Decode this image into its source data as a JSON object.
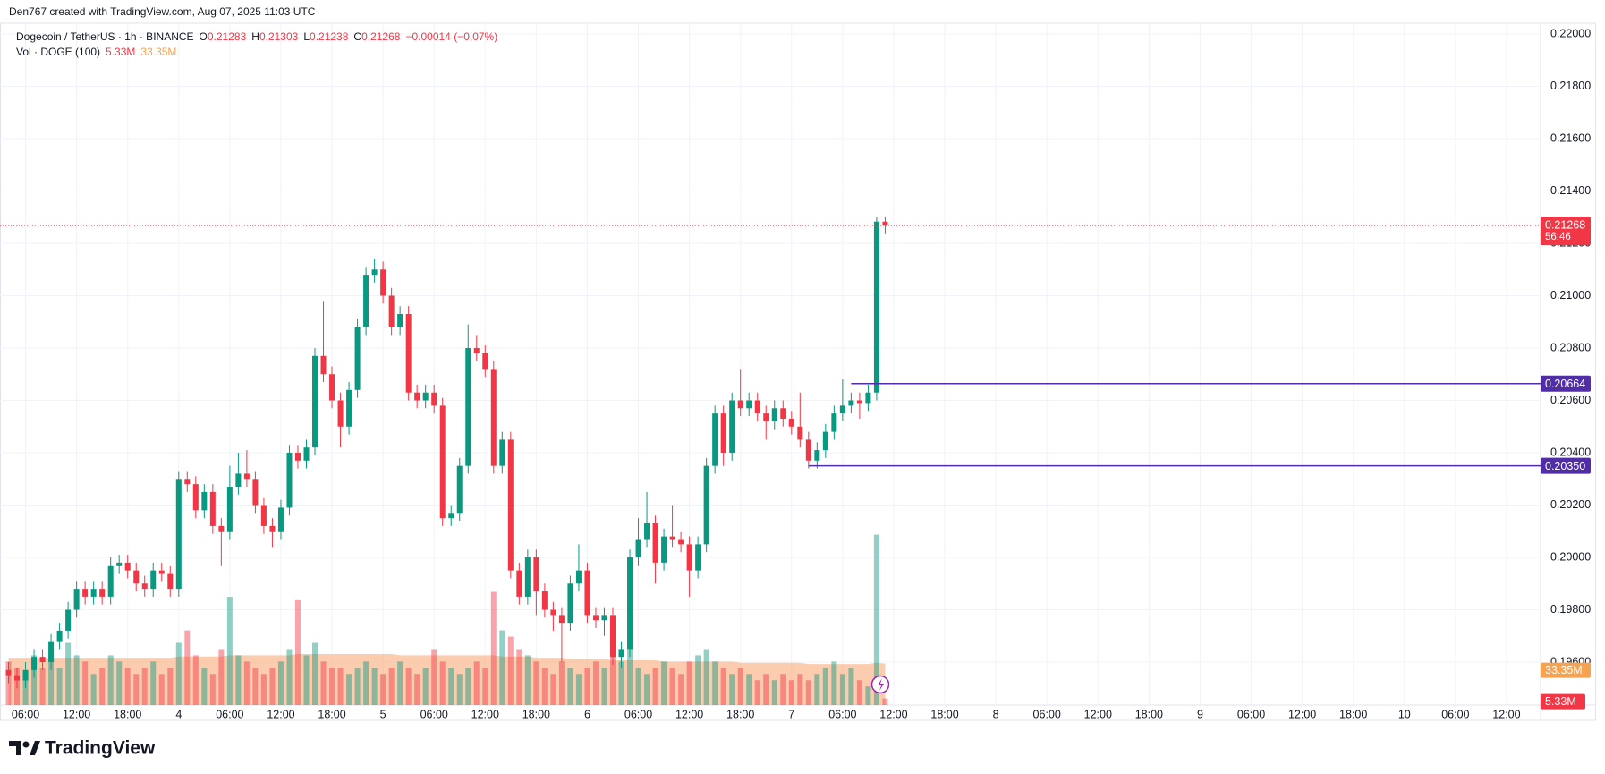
{
  "chart_data": {
    "type": "candlestick",
    "header": "Den767 created with TradingView.com, Aug 07, 2025 11:03 UTC",
    "legend": {
      "symbol": "Dogecoin / TetherUS · 1h · BINANCE",
      "o": "O",
      "h": "H",
      "l": "L",
      "c": "C",
      "change": "−0.00014 (−0.07%)",
      "vol": "Vol · DOGE (100)"
    },
    "brand": "TradingView",
    "countdown": "56:46",
    "up_color": "#089981",
    "down_color": "#f23645",
    "ma_color": "#f9a36d",
    "level_color": "#512da8",
    "x": [
      "2025-08-03 04:00",
      "2025-08-03 05:00",
      "2025-08-03 06:00",
      "2025-08-03 07:00",
      "2025-08-03 08:00",
      "2025-08-03 09:00",
      "2025-08-03 10:00",
      "2025-08-03 11:00",
      "2025-08-03 12:00",
      "2025-08-03 13:00",
      "2025-08-03 14:00",
      "2025-08-03 15:00",
      "2025-08-03 16:00",
      "2025-08-03 17:00",
      "2025-08-03 18:00",
      "2025-08-03 19:00",
      "2025-08-03 20:00",
      "2025-08-03 21:00",
      "2025-08-03 22:00",
      "2025-08-03 23:00",
      "2025-08-04 00:00",
      "2025-08-04 01:00",
      "2025-08-04 02:00",
      "2025-08-04 03:00",
      "2025-08-04 04:00",
      "2025-08-04 05:00",
      "2025-08-04 06:00",
      "2025-08-04 07:00",
      "2025-08-04 08:00",
      "2025-08-04 09:00",
      "2025-08-04 10:00",
      "2025-08-04 11:00",
      "2025-08-04 12:00",
      "2025-08-04 13:00",
      "2025-08-04 14:00",
      "2025-08-04 15:00",
      "2025-08-04 16:00",
      "2025-08-04 17:00",
      "2025-08-04 18:00",
      "2025-08-04 19:00",
      "2025-08-04 20:00",
      "2025-08-04 21:00",
      "2025-08-04 22:00",
      "2025-08-04 23:00",
      "2025-08-05 00:00",
      "2025-08-05 01:00",
      "2025-08-05 02:00",
      "2025-08-05 03:00",
      "2025-08-05 04:00",
      "2025-08-05 05:00",
      "2025-08-05 06:00",
      "2025-08-05 07:00",
      "2025-08-05 08:00",
      "2025-08-05 09:00",
      "2025-08-05 10:00",
      "2025-08-05 11:00",
      "2025-08-05 12:00",
      "2025-08-05 13:00",
      "2025-08-05 14:00",
      "2025-08-05 15:00",
      "2025-08-05 16:00",
      "2025-08-05 17:00",
      "2025-08-05 18:00",
      "2025-08-05 19:00",
      "2025-08-05 20:00",
      "2025-08-05 21:00",
      "2025-08-05 22:00",
      "2025-08-05 23:00",
      "2025-08-06 00:00",
      "2025-08-06 01:00",
      "2025-08-06 02:00",
      "2025-08-06 03:00",
      "2025-08-06 04:00",
      "2025-08-06 05:00",
      "2025-08-06 06:00",
      "2025-08-06 07:00",
      "2025-08-06 08:00",
      "2025-08-06 09:00",
      "2025-08-06 10:00",
      "2025-08-06 11:00",
      "2025-08-06 12:00",
      "2025-08-06 13:00",
      "2025-08-06 14:00",
      "2025-08-06 15:00",
      "2025-08-06 16:00",
      "2025-08-06 17:00",
      "2025-08-06 18:00",
      "2025-08-06 19:00",
      "2025-08-06 20:00",
      "2025-08-06 21:00",
      "2025-08-06 22:00",
      "2025-08-06 23:00",
      "2025-08-07 00:00",
      "2025-08-07 01:00",
      "2025-08-07 02:00",
      "2025-08-07 03:00",
      "2025-08-07 04:00",
      "2025-08-07 05:00",
      "2025-08-07 06:00",
      "2025-08-07 07:00",
      "2025-08-07 08:00",
      "2025-08-07 09:00",
      "2025-08-07 10:00",
      "2025-08-07 11:00"
    ],
    "open": [
      0.1957,
      0.1955,
      0.1953,
      0.1957,
      0.1962,
      0.196,
      0.1968,
      0.1972,
      0.198,
      0.1988,
      0.1985,
      0.1988,
      0.1985,
      0.1997,
      0.1998,
      0.1995,
      0.199,
      0.1988,
      0.1995,
      0.1994,
      0.1988,
      0.203,
      0.2028,
      0.2018,
      0.2025,
      0.2012,
      0.201,
      0.2027,
      0.2032,
      0.203,
      0.202,
      0.2012,
      0.201,
      0.2019,
      0.204,
      0.2037,
      0.2042,
      0.2077,
      0.207,
      0.206,
      0.205,
      0.2064,
      0.2088,
      0.2108,
      0.211,
      0.21,
      0.2088,
      0.2093,
      0.2063,
      0.206,
      0.2063,
      0.2058,
      0.2015,
      0.2017,
      0.2035,
      0.208,
      0.2078,
      0.2072,
      0.2035,
      0.2045,
      0.1995,
      0.1985,
      0.2,
      0.1987,
      0.198,
      0.1978,
      0.1975,
      0.199,
      0.1995,
      0.1978,
      0.1976,
      0.1978,
      0.1962,
      0.1965,
      0.2,
      0.2007,
      0.2013,
      0.1998,
      0.2008,
      0.2007,
      0.2005,
      0.1995,
      0.2005,
      0.2035,
      0.2055,
      0.204,
      0.206,
      0.2057,
      0.206,
      0.2055,
      0.2052,
      0.2057,
      0.2053,
      0.205,
      0.2045,
      0.2037,
      0.2041,
      0.2048,
      0.2055,
      0.2058,
      0.206,
      0.2059,
      0.2063,
      0.21283
    ],
    "high": [
      0.196,
      0.1958,
      0.196,
      0.1965,
      0.1965,
      0.1971,
      0.1975,
      0.1983,
      0.1991,
      0.1991,
      0.1991,
      0.1991,
      0.2,
      0.2001,
      0.2001,
      0.1998,
      0.1993,
      0.1998,
      0.1998,
      0.1997,
      0.2033,
      0.2033,
      0.2031,
      0.2028,
      0.2028,
      0.2015,
      0.2035,
      0.204,
      0.2041,
      0.2033,
      0.2023,
      0.2015,
      0.2022,
      0.2043,
      0.2043,
      0.2045,
      0.208,
      0.2098,
      0.2073,
      0.2063,
      0.2067,
      0.2091,
      0.2111,
      0.2114,
      0.2113,
      0.2103,
      0.2096,
      0.2096,
      0.2066,
      0.2066,
      0.2066,
      0.2061,
      0.202,
      0.2038,
      0.2089,
      0.2085,
      0.2081,
      0.2075,
      0.2048,
      0.2048,
      0.1998,
      0.2003,
      0.2003,
      0.199,
      0.1983,
      0.1981,
      0.1993,
      0.2005,
      0.1998,
      0.1981,
      0.1981,
      0.1981,
      0.1968,
      0.2003,
      0.2015,
      0.2025,
      0.2016,
      0.2011,
      0.202,
      0.201,
      0.2008,
      0.2008,
      0.2038,
      0.2058,
      0.2058,
      0.2063,
      0.2072,
      0.2063,
      0.2063,
      0.2058,
      0.206,
      0.206,
      0.2056,
      0.2063,
      0.2048,
      0.2044,
      0.2051,
      0.2058,
      0.2068,
      0.2063,
      0.2063,
      0.2066,
      0.213,
      0.21303
    ],
    "low": [
      0.1952,
      0.195,
      0.195,
      0.1954,
      0.1957,
      0.1957,
      0.1965,
      0.1969,
      0.1977,
      0.1982,
      0.1982,
      0.1982,
      0.1982,
      0.1994,
      0.1992,
      0.1987,
      0.1985,
      0.1985,
      0.1991,
      0.1985,
      0.1985,
      0.2025,
      0.2015,
      0.2015,
      0.2009,
      0.1997,
      0.2007,
      0.2024,
      0.2027,
      0.2017,
      0.2009,
      0.2004,
      0.2007,
      0.2016,
      0.2034,
      0.2034,
      0.2039,
      0.2067,
      0.2057,
      0.2042,
      0.2047,
      0.2061,
      0.2085,
      0.2105,
      0.2097,
      0.2085,
      0.2085,
      0.206,
      0.2057,
      0.2057,
      0.2055,
      0.2012,
      0.2012,
      0.2014,
      0.2032,
      0.2075,
      0.2069,
      0.2032,
      0.2032,
      0.1992,
      0.1982,
      0.1982,
      0.1978,
      0.1977,
      0.1972,
      0.196,
      0.1972,
      0.1987,
      0.1975,
      0.1973,
      0.197,
      0.1959,
      0.1958,
      0.1962,
      0.1997,
      0.2004,
      0.199,
      0.1995,
      0.2004,
      0.2002,
      0.1985,
      0.1992,
      0.2002,
      0.2032,
      0.2035,
      0.2037,
      0.2054,
      0.2054,
      0.2052,
      0.2045,
      0.2049,
      0.205,
      0.2047,
      0.2042,
      0.2034,
      0.2034,
      0.2038,
      0.2045,
      0.2052,
      0.2055,
      0.2053,
      0.2056,
      0.206,
      0.21238
    ],
    "close": [
      0.1955,
      0.1953,
      0.1957,
      0.1962,
      0.196,
      0.1968,
      0.1972,
      0.198,
      0.1988,
      0.1985,
      0.1988,
      0.1985,
      0.1997,
      0.1998,
      0.1995,
      0.199,
      0.1988,
      0.1995,
      0.1994,
      0.1988,
      0.203,
      0.2028,
      0.2018,
      0.2025,
      0.2012,
      0.201,
      0.2027,
      0.2032,
      0.203,
      0.202,
      0.2012,
      0.201,
      0.2019,
      0.204,
      0.2037,
      0.2042,
      0.2077,
      0.207,
      0.206,
      0.205,
      0.2064,
      0.2088,
      0.2108,
      0.211,
      0.21,
      0.2088,
      0.2093,
      0.2063,
      0.206,
      0.2063,
      0.2058,
      0.2015,
      0.2017,
      0.2035,
      0.208,
      0.2078,
      0.2072,
      0.2035,
      0.2045,
      0.1995,
      0.1985,
      0.2,
      0.1987,
      0.198,
      0.1978,
      0.1975,
      0.199,
      0.1995,
      0.1978,
      0.1976,
      0.1978,
      0.1962,
      0.1965,
      0.2,
      0.2007,
      0.2013,
      0.1998,
      0.2008,
      0.2007,
      0.2005,
      0.1995,
      0.2005,
      0.2035,
      0.2055,
      0.204,
      0.206,
      0.2057,
      0.206,
      0.2055,
      0.2052,
      0.2057,
      0.2053,
      0.205,
      0.2045,
      0.2037,
      0.2041,
      0.2048,
      0.2055,
      0.2058,
      0.206,
      0.2059,
      0.2063,
      0.21283,
      0.21268
    ],
    "volume": [
      35,
      30,
      25,
      40,
      30,
      45,
      30,
      50,
      40,
      35,
      25,
      30,
      40,
      35,
      30,
      25,
      30,
      35,
      25,
      30,
      50,
      60,
      40,
      30,
      25,
      45,
      87,
      40,
      35,
      30,
      25,
      30,
      35,
      45,
      85,
      40,
      50,
      35,
      30,
      30,
      25,
      30,
      35,
      30,
      25,
      30,
      35,
      30,
      25,
      30,
      45,
      35,
      30,
      25,
      30,
      35,
      30,
      91,
      60,
      55,
      45,
      40,
      35,
      30,
      25,
      35,
      30,
      25,
      30,
      35,
      30,
      40,
      35,
      45,
      30,
      25,
      30,
      35,
      30,
      25,
      35,
      40,
      45,
      35,
      30,
      25,
      30,
      25,
      20,
      25,
      20,
      25,
      20,
      25,
      20,
      25,
      30,
      35,
      25,
      30,
      20,
      15,
      137,
      5.33
    ],
    "volume_label": "5.33M",
    "volume_ma": [
      38,
      38,
      38,
      38,
      38,
      38,
      38,
      38,
      38,
      38,
      38,
      38,
      38,
      38,
      38,
      38,
      38,
      38,
      38,
      38,
      39,
      39,
      39,
      39,
      39,
      39,
      40,
      40,
      40,
      40,
      40,
      40,
      40,
      40,
      41,
      41,
      41,
      41,
      41,
      41,
      41,
      41,
      41,
      41,
      41,
      41,
      40,
      40,
      40,
      40,
      40,
      40,
      40,
      40,
      40,
      40,
      40,
      40,
      39,
      39,
      39,
      39,
      38,
      38,
      38,
      38,
      37,
      37,
      37,
      37,
      37,
      36,
      36,
      36,
      36,
      36,
      36,
      35,
      35,
      35,
      35,
      35,
      35,
      35,
      35,
      35,
      34,
      34,
      34,
      34,
      34,
      34,
      34,
      34,
      33,
      33,
      33,
      33,
      33,
      33,
      33,
      33,
      34,
      33.35
    ],
    "volume_ma_label": "33.35M",
    "levels": [
      {
        "value": 0.20664,
        "start": "2025-08-07 07:00"
      },
      {
        "value": 0.2035,
        "label": "0.20350",
        "start": "2025-08-07 02:00"
      }
    ],
    "xlim": [
      "2025-08-03 03:00",
      "2025-08-10 16:00"
    ],
    "ylim": [
      0.19436,
      0.22041
    ],
    "yticks": [
      {
        "value": 0.196,
        "label": "0.19600"
      },
      {
        "value": 0.198,
        "label": "0.19800"
      },
      {
        "value": 0.2,
        "label": "0.20000"
      },
      {
        "value": 0.202,
        "label": "0.20200"
      },
      {
        "value": 0.204,
        "label": "0.20400"
      },
      {
        "value": 0.206,
        "label": "0.20600"
      },
      {
        "value": 0.208,
        "label": "0.20800"
      },
      {
        "value": 0.21,
        "label": "0.21000"
      },
      {
        "value": 0.212,
        "label": "0.21200"
      },
      {
        "value": 0.214,
        "label": "0.21400"
      },
      {
        "value": 0.216,
        "label": "0.21600"
      },
      {
        "value": 0.218,
        "label": "0.21800"
      },
      {
        "value": 0.22,
        "label": "0.22000"
      }
    ],
    "xticks": [
      {
        "value": "2025-08-03 06:00",
        "label": "06:00"
      },
      {
        "value": "2025-08-03 12:00",
        "label": "12:00"
      },
      {
        "value": "2025-08-03 18:00",
        "label": "18:00"
      },
      {
        "value": "2025-08-04 00:00",
        "label": "4"
      },
      {
        "value": "2025-08-04 06:00",
        "label": "06:00"
      },
      {
        "value": "2025-08-04 12:00",
        "label": "12:00"
      },
      {
        "value": "2025-08-04 18:00",
        "label": "18:00"
      },
      {
        "value": "2025-08-05 00:00",
        "label": "5"
      },
      {
        "value": "2025-08-05 06:00",
        "label": "06:00"
      },
      {
        "value": "2025-08-05 12:00",
        "label": "12:00"
      },
      {
        "value": "2025-08-05 18:00",
        "label": "18:00"
      },
      {
        "value": "2025-08-06 00:00",
        "label": "6"
      },
      {
        "value": "2025-08-06 06:00",
        "label": "06:00"
      },
      {
        "value": "2025-08-06 12:00",
        "label": "12:00"
      },
      {
        "value": "2025-08-06 18:00",
        "label": "18:00"
      },
      {
        "value": "2025-08-07 00:00",
        "label": "7"
      },
      {
        "value": "2025-08-07 06:00",
        "label": "06:00"
      },
      {
        "value": "2025-08-07 12:00",
        "label": "12:00"
      },
      {
        "value": "2025-08-07 18:00",
        "label": "18:00"
      },
      {
        "value": "2025-08-08 00:00",
        "label": "8"
      },
      {
        "value": "2025-08-08 06:00",
        "label": "06:00"
      },
      {
        "value": "2025-08-08 12:00",
        "label": "12:00"
      },
      {
        "value": "2025-08-08 18:00",
        "label": "18:00"
      },
      {
        "value": "2025-08-09 00:00",
        "label": "9"
      },
      {
        "value": "2025-08-09 06:00",
        "label": "06:00"
      },
      {
        "value": "2025-08-09 12:00",
        "label": "12:00"
      },
      {
        "value": "2025-08-09 18:00",
        "label": "18:00"
      },
      {
        "value": "2025-08-10 00:00",
        "label": "10"
      },
      {
        "value": "2025-08-10 06:00",
        "label": "06:00"
      },
      {
        "value": "2025-08-10 12:00",
        "label": "12:00"
      }
    ],
    "grid": true
  }
}
